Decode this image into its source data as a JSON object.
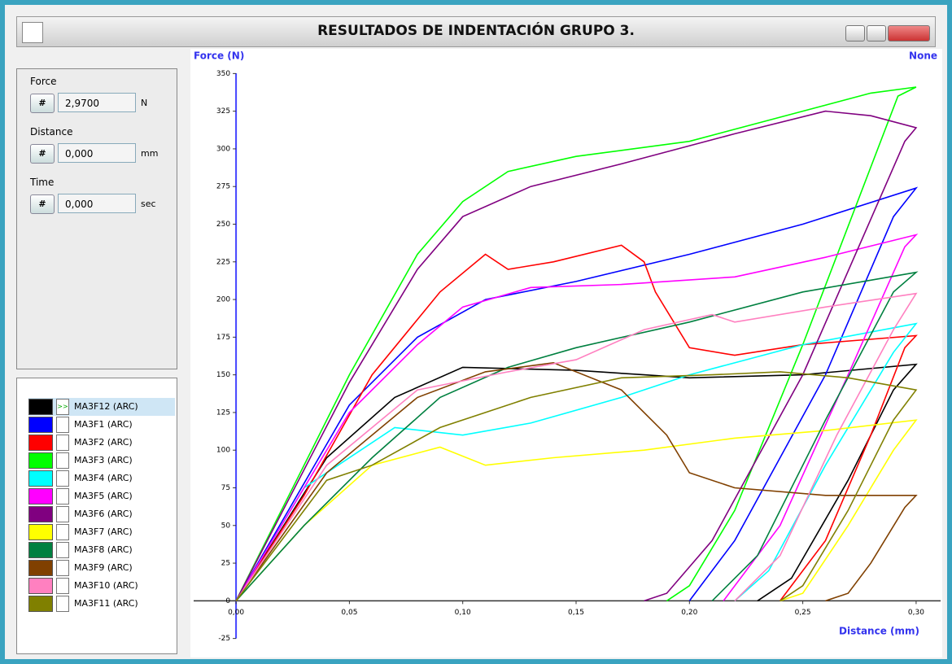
{
  "window": {
    "title": "RESULTADOS DE INDENTACIÓN GRUPO 3."
  },
  "panel": {
    "fields": [
      {
        "label": "Force",
        "button": "#",
        "value": "2,9700",
        "unit": "N"
      },
      {
        "label": "Distance",
        "button": "#",
        "value": "0,000",
        "unit": "mm"
      },
      {
        "label": "Time",
        "button": "#",
        "value": "0,000",
        "unit": "sec"
      }
    ]
  },
  "legend": {
    "selected_marker": ">>"
  },
  "chart_data": {
    "type": "line",
    "y_label": "Force (N)",
    "x_label": "Distance (mm)",
    "right_label": "None",
    "xlim": [
      -0.0187,
      0.3108
    ],
    "ylim": [
      -36,
      361
    ],
    "xticks": [
      {
        "value": 0,
        "label": "0,00"
      },
      {
        "value": 0.05,
        "label": "0,05"
      },
      {
        "value": 0.1,
        "label": "0,10"
      },
      {
        "value": 0.15,
        "label": "0,15"
      },
      {
        "value": 0.2,
        "label": "0,20"
      },
      {
        "value": 0.25,
        "label": "0,25"
      },
      {
        "value": 0.3,
        "label": "0,30"
      }
    ],
    "yticks": [
      -25,
      0,
      25,
      50,
      75,
      100,
      125,
      150,
      175,
      200,
      225,
      250,
      275,
      300,
      325,
      350
    ],
    "series": [
      {
        "name": "MA3F12 (ARC)",
        "color": "#000000",
        "x": [
          0,
          0.04,
          0.07,
          0.1,
          0.15,
          0.18,
          0.2,
          0.25,
          0.3,
          0.29,
          0.27,
          0.245,
          0.23
        ],
        "values": [
          0,
          95,
          135,
          155,
          153,
          150,
          148,
          150,
          157,
          140,
          80,
          15,
          0
        ]
      },
      {
        "name": "MA3F1 (ARC)",
        "color": "#0000ff",
        "x": [
          0,
          0.05,
          0.08,
          0.11,
          0.15,
          0.2,
          0.25,
          0.3,
          0.29,
          0.26,
          0.22,
          0.2
        ],
        "values": [
          0,
          130,
          175,
          200,
          212,
          230,
          250,
          274,
          255,
          150,
          40,
          0
        ]
      },
      {
        "name": "MA3F2 (ARC)",
        "color": "#ff0000",
        "x": [
          0,
          0.03,
          0.06,
          0.09,
          0.11,
          0.12,
          0.14,
          0.17,
          0.18,
          0.185,
          0.2,
          0.22,
          0.25,
          0.3,
          0.295,
          0.28,
          0.26,
          0.24
        ],
        "values": [
          0,
          70,
          150,
          205,
          230,
          220,
          225,
          236,
          225,
          205,
          168,
          163,
          170,
          176,
          168,
          110,
          40,
          0
        ]
      },
      {
        "name": "MA3F3 (ARC)",
        "color": "#00ff00",
        "x": [
          0,
          0.02,
          0.05,
          0.08,
          0.1,
          0.12,
          0.15,
          0.2,
          0.25,
          0.28,
          0.3,
          0.292,
          0.25,
          0.22,
          0.2,
          0.19
        ],
        "values": [
          0,
          60,
          150,
          230,
          265,
          285,
          295,
          305,
          325,
          337,
          341,
          335,
          170,
          60,
          10,
          0
        ]
      },
      {
        "name": "MA3F4 (ARC)",
        "color": "#00ffff",
        "x": [
          0,
          0.03,
          0.07,
          0.1,
          0.13,
          0.17,
          0.2,
          0.25,
          0.3,
          0.29,
          0.26,
          0.235,
          0.22
        ],
        "values": [
          0,
          75,
          115,
          110,
          118,
          135,
          150,
          170,
          184,
          165,
          90,
          20,
          0
        ]
      },
      {
        "name": "MA3F5 (ARC)",
        "color": "#ff00ff",
        "x": [
          0,
          0.05,
          0.08,
          0.1,
          0.13,
          0.17,
          0.22,
          0.26,
          0.3,
          0.295,
          0.27,
          0.24,
          0.215
        ],
        "values": [
          0,
          125,
          170,
          195,
          208,
          210,
          215,
          228,
          243,
          235,
          150,
          50,
          0
        ]
      },
      {
        "name": "MA3F6 (ARC)",
        "color": "#800080",
        "x": [
          0,
          0.05,
          0.08,
          0.1,
          0.13,
          0.17,
          0.22,
          0.26,
          0.28,
          0.3,
          0.295,
          0.25,
          0.21,
          0.19,
          0.18
        ],
        "values": [
          0,
          145,
          220,
          255,
          275,
          290,
          310,
          325,
          322,
          314,
          305,
          150,
          40,
          5,
          0
        ]
      },
      {
        "name": "MA3F7 (ARC)",
        "color": "#ffff00",
        "x": [
          0,
          0.03,
          0.06,
          0.09,
          0.11,
          0.14,
          0.18,
          0.22,
          0.26,
          0.3,
          0.29,
          0.27,
          0.25,
          0.24
        ],
        "values": [
          0,
          50,
          90,
          102,
          90,
          95,
          100,
          108,
          113,
          120,
          100,
          50,
          5,
          0
        ]
      },
      {
        "name": "MA3F8 (ARC)",
        "color": "#008040",
        "x": [
          0,
          0.03,
          0.06,
          0.09,
          0.12,
          0.15,
          0.2,
          0.25,
          0.3,
          0.29,
          0.26,
          0.23,
          0.21
        ],
        "values": [
          0,
          50,
          95,
          135,
          155,
          168,
          185,
          205,
          218,
          205,
          120,
          30,
          0
        ]
      },
      {
        "name": "MA3F9 (ARC)",
        "color": "#804000",
        "x": [
          0,
          0.04,
          0.08,
          0.11,
          0.14,
          0.17,
          0.19,
          0.2,
          0.22,
          0.26,
          0.3,
          0.295,
          0.28,
          0.27,
          0.26
        ],
        "values": [
          0,
          85,
          135,
          152,
          158,
          140,
          110,
          85,
          75,
          70,
          70,
          62,
          25,
          5,
          0
        ]
      },
      {
        "name": "MA3F10 (ARC)",
        "color": "#ff80c0",
        "x": [
          0,
          0.04,
          0.08,
          0.12,
          0.15,
          0.18,
          0.21,
          0.22,
          0.26,
          0.3,
          0.29,
          0.265,
          0.24,
          0.22
        ],
        "values": [
          0,
          90,
          140,
          152,
          160,
          180,
          190,
          185,
          195,
          204,
          180,
          110,
          30,
          0
        ]
      },
      {
        "name": "MA3F11 (ARC)",
        "color": "#808000",
        "x": [
          0,
          0.04,
          0.06,
          0.09,
          0.13,
          0.17,
          0.21,
          0.24,
          0.27,
          0.3,
          0.29,
          0.27,
          0.25,
          0.24
        ],
        "values": [
          0,
          80,
          90,
          115,
          135,
          148,
          150,
          152,
          148,
          140,
          120,
          60,
          10,
          0
        ]
      }
    ]
  }
}
